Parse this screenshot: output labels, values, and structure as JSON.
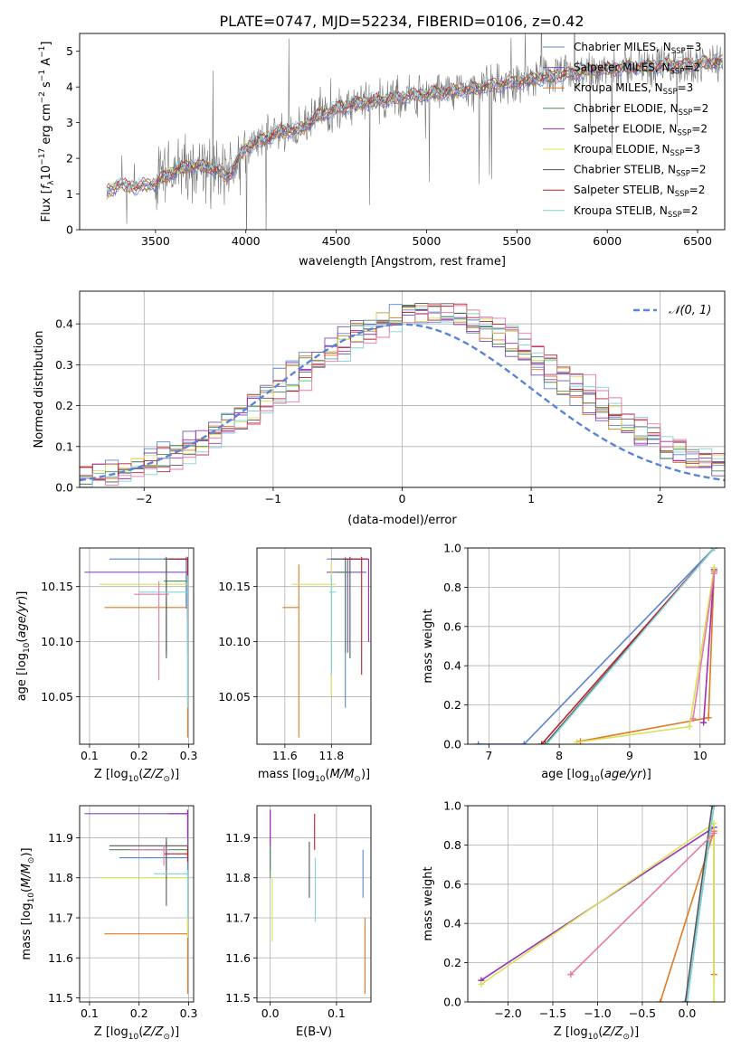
{
  "figure_title": "PLATE=0747, MJD=52234, FIBERID=0106, z=0.42",
  "colors": {
    "Chabrier MILES": "#5b84d6",
    "Salpeter MILES": "#7a4fb8",
    "Kroupa MILES": "#e07b23",
    "Chabrier ELODIE": "#4e8a5c",
    "Salpeter ELODIE": "#9b30b4",
    "Kroupa ELODIE": "#d8e35a",
    "Chabrier STELIB": "#555555",
    "Salpeter STELIB": "#b8202a",
    "Kroupa STELIB": "#7fd3d8",
    "pink": "#e879a8",
    "data": "#777777"
  },
  "chart_data": [
    {
      "id": "spectrum",
      "type": "line",
      "title": "PLATE=0747, MJD=52234, FIBERID=0106, z=0.42",
      "xlabel": "wavelength [Angstrom, rest frame]",
      "ylabel_parts": [
        "Flux [",
        "f",
        "λ",
        "10",
        "−17",
        " erg cm",
        "−2",
        " s",
        "−1",
        " A",
        "−1",
        "]"
      ],
      "xlim": [
        3080,
        6650
      ],
      "ylim": [
        0,
        5.5
      ],
      "xticks": [
        3500,
        4000,
        4500,
        5000,
        5500,
        6000,
        6500
      ],
      "yticks": [
        0,
        1,
        2,
        3,
        4,
        5
      ],
      "grid": false,
      "legend": "upper-right",
      "legend_entries": [
        {
          "prefix": "Chabrier MILES, N",
          "sub": "SSP",
          "suffix": "=3"
        },
        {
          "prefix": "Salpeter MILES, N",
          "sub": "SSP",
          "suffix": "=2"
        },
        {
          "prefix": "Kroupa MILES, N",
          "sub": "SSP",
          "suffix": "=3"
        },
        {
          "prefix": "Chabrier ELODIE, N",
          "sub": "SSP",
          "suffix": "=2"
        },
        {
          "prefix": "Salpeter ELODIE, N",
          "sub": "SSP",
          "suffix": "=2"
        },
        {
          "prefix": "Kroupa ELODIE, N",
          "sub": "SSP",
          "suffix": "=3"
        },
        {
          "prefix": "Chabrier STELIB, N",
          "sub": "SSP",
          "suffix": "=2"
        },
        {
          "prefix": "Salpeter STELIB, N",
          "sub": "SSP",
          "suffix": "=2"
        },
        {
          "prefix": "Kroupa STELIB, N",
          "sub": "SSP",
          "suffix": "=2"
        }
      ],
      "continuum": [
        [
          3230,
          1.05
        ],
        [
          3290,
          1.25
        ],
        [
          3400,
          1.2
        ],
        [
          3500,
          1.3
        ],
        [
          3600,
          1.65
        ],
        [
          3700,
          1.8
        ],
        [
          3800,
          1.75
        ],
        [
          3900,
          1.5
        ],
        [
          4000,
          2.3
        ],
        [
          4100,
          2.55
        ],
        [
          4200,
          2.75
        ],
        [
          4300,
          2.8
        ],
        [
          4400,
          3.2
        ],
        [
          4500,
          3.4
        ],
        [
          4700,
          3.6
        ],
        [
          4900,
          3.75
        ],
        [
          5100,
          3.85
        ],
        [
          5300,
          4.0
        ],
        [
          5500,
          4.15
        ],
        [
          5700,
          4.3
        ],
        [
          5900,
          4.45
        ],
        [
          6100,
          4.55
        ],
        [
          6300,
          4.6
        ],
        [
          6500,
          4.65
        ],
        [
          6600,
          4.7
        ]
      ]
    },
    {
      "id": "residuals",
      "type": "histogram",
      "xlabel": "(data-model)/error",
      "ylabel": "Normed distribution",
      "xlim": [
        -2.5,
        2.5
      ],
      "ylim": [
        0,
        0.48
      ],
      "xticks": [
        -2,
        -1,
        0,
        1,
        2
      ],
      "yticks": [
        0.0,
        0.1,
        0.2,
        0.3,
        0.4
      ],
      "grid": true,
      "legend": "upper-right",
      "legend_label": "𝒩(0, 1)",
      "bin_width": 0.1,
      "gaussian": {
        "mu": 0,
        "sigma": 1
      }
    },
    {
      "id": "age-vs-Z",
      "type": "errorbar",
      "xlabel": "Z [log",
      "xlabel_sub": "10",
      "xlabel_tail": "(Z/Z",
      "xlabel_sun": "⊙",
      "xlabel_end": ")]",
      "ylabel": "age  [log",
      "ylabel_sub": "10",
      "ylabel_tail": "(age/yr)]",
      "xlim": [
        0.08,
        0.31
      ],
      "ylim": [
        10.007,
        10.185
      ],
      "xticks": [
        0.1,
        0.2,
        0.3
      ],
      "yticks": [
        10.05,
        10.1,
        10.15
      ],
      "grid": true,
      "points": [
        {
          "m": "Chabrier MILES",
          "x": 0.295,
          "y": 10.175,
          "xe": [
            0.14,
            0.295
          ],
          "ye": [
            10.13,
            10.177
          ]
        },
        {
          "m": "Salpeter MILES",
          "x": 0.298,
          "y": 10.163,
          "xe": [
            0.09,
            0.298
          ],
          "ye": [
            10.09,
            10.175
          ]
        },
        {
          "m": "Kroupa MILES",
          "x": 0.298,
          "y": 10.131,
          "xe": [
            0.13,
            0.298
          ],
          "ye": [
            10.013,
            10.175
          ]
        },
        {
          "m": "Chabrier ELODIE",
          "x": 0.255,
          "y": 10.155,
          "xe": [
            0.25,
            0.298
          ],
          "ye": [
            10.09,
            10.175
          ]
        },
        {
          "m": "Salpeter ELODIE",
          "x": 0.298,
          "y": 10.175,
          "xe": [
            0.26,
            0.298
          ],
          "ye": [
            10.1,
            10.175
          ]
        },
        {
          "m": "Kroupa ELODIE",
          "x": 0.298,
          "y": 10.152,
          "xe": [
            0.12,
            0.298
          ],
          "ye": [
            10.14,
            10.172
          ]
        },
        {
          "m": "Chabrier STELIB",
          "x": 0.255,
          "y": 10.175,
          "xe": [
            0.25,
            0.298
          ],
          "ye": [
            10.085,
            10.177
          ]
        },
        {
          "m": "Salpeter STELIB",
          "x": 0.298,
          "y": 10.175,
          "xe": [
            0.26,
            0.298
          ],
          "ye": [
            10.12,
            10.177
          ]
        },
        {
          "m": "Kroupa STELIB",
          "x": 0.298,
          "y": 10.145,
          "xe": [
            0.2,
            0.298
          ],
          "ye": [
            10.04,
            10.16
          ]
        },
        {
          "m": "pink",
          "x": 0.24,
          "y": 10.143,
          "xe": [
            0.19,
            0.26
          ],
          "ye": [
            10.065,
            10.155
          ]
        }
      ]
    },
    {
      "id": "age-vs-mass",
      "type": "errorbar",
      "xlabel": "mass [log",
      "xlabel_sub": "10",
      "xlabel_tail": "(M/M",
      "xlabel_sun": "⊙",
      "xlabel_end": ")]",
      "xlim": [
        11.48,
        11.97
      ],
      "ylim": [
        10.007,
        10.185
      ],
      "xticks": [
        11.6,
        11.8
      ],
      "yticks": [
        10.05,
        10.1,
        10.15
      ],
      "grid": true,
      "points": [
        {
          "m": "Chabrier MILES",
          "x": 11.86,
          "y": 10.175,
          "xe": [
            11.78,
            11.93
          ],
          "ye": [
            10.04,
            10.177
          ]
        },
        {
          "m": "Salpeter MILES",
          "x": 11.87,
          "y": 10.163,
          "xe": [
            11.78,
            11.95
          ],
          "ye": [
            10.09,
            10.175
          ]
        },
        {
          "m": "Kroupa MILES",
          "x": 11.66,
          "y": 10.131,
          "xe": [
            11.59,
            11.66
          ],
          "ye": [
            10.013,
            10.17
          ]
        },
        {
          "m": "Chabrier ELODIE",
          "x": 11.86,
          "y": 10.163,
          "xe": [
            11.82,
            11.88
          ],
          "ye": [
            10.09,
            10.175
          ]
        },
        {
          "m": "Salpeter ELODIE",
          "x": 11.96,
          "y": 10.175,
          "xe": [
            11.86,
            11.96
          ],
          "ye": [
            10.1,
            10.175
          ]
        },
        {
          "m": "Kroupa ELODIE",
          "x": 11.8,
          "y": 10.152,
          "xe": [
            11.63,
            11.82
          ],
          "ye": [
            10.05,
            10.172
          ]
        },
        {
          "m": "Chabrier STELIB",
          "x": 11.88,
          "y": 10.175,
          "xe": [
            11.8,
            11.89
          ],
          "ye": [
            10.085,
            10.177
          ]
        },
        {
          "m": "Salpeter STELIB",
          "x": 11.93,
          "y": 10.175,
          "xe": [
            11.85,
            11.96
          ],
          "ye": [
            10.07,
            10.177
          ]
        },
        {
          "m": "Kroupa STELIB",
          "x": 11.8,
          "y": 10.145,
          "xe": [
            11.79,
            11.82
          ],
          "ye": [
            10.07,
            10.16
          ]
        }
      ]
    },
    {
      "id": "mass-weight-vs-age",
      "type": "line",
      "xlabel": "age  [log",
      "xlabel_sub": "10",
      "xlabel_tail": "(age/yr)]",
      "ylabel": "mass weight",
      "xlim": [
        6.7,
        10.35
      ],
      "ylim": [
        0,
        1.0
      ],
      "xticks": [
        7,
        8,
        9,
        10
      ],
      "yticks": [
        0.0,
        0.2,
        0.4,
        0.6,
        0.8,
        1.0
      ],
      "grid": true,
      "series": [
        {
          "m": "Chabrier MILES",
          "points": [
            [
              6.85,
              0.0
            ],
            [
              7.5,
              0.0
            ],
            [
              10.2,
              1.0
            ]
          ]
        },
        {
          "m": "Kroupa MILES",
          "points": [
            [
              8.3,
              0.015
            ],
            [
              10.12,
              0.135
            ],
            [
              10.2,
              0.88
            ]
          ]
        },
        {
          "m": "Chabrier ELODIE",
          "points": [
            [
              7.8,
              0.0
            ],
            [
              10.2,
              1.0
            ]
          ]
        },
        {
          "m": "Salpeter ELODIE",
          "points": [
            [
              10.05,
              0.11
            ],
            [
              10.2,
              0.89
            ]
          ]
        },
        {
          "m": "Kroupa ELODIE",
          "points": [
            [
              8.25,
              0.01
            ],
            [
              9.85,
              0.09
            ],
            [
              10.2,
              0.9
            ]
          ]
        },
        {
          "m": "Chabrier STELIB",
          "points": [
            [
              7.8,
              0.0
            ],
            [
              10.2,
              1.0
            ]
          ]
        },
        {
          "m": "Salpeter STELIB",
          "points": [
            [
              7.75,
              0.0
            ],
            [
              10.2,
              1.0
            ]
          ]
        },
        {
          "m": "Kroupa STELIB",
          "points": [
            [
              7.82,
              0.0
            ],
            [
              10.2,
              1.0
            ]
          ]
        },
        {
          "m": "pink",
          "points": [
            [
              9.9,
              0.13
            ],
            [
              10.2,
              0.87
            ]
          ]
        }
      ]
    },
    {
      "id": "mass-vs-Z",
      "type": "errorbar",
      "xlabel": "Z [log",
      "xlabel_sub": "10",
      "xlabel_tail": "(Z/Z",
      "xlabel_sun": "⊙",
      "xlabel_end": ")]",
      "ylabel": "mass [log",
      "ylabel_sub": "10",
      "ylabel_tail": "(M/M",
      "ylabel_sun": "⊙",
      "ylabel_end": ")]",
      "xlim": [
        0.08,
        0.31
      ],
      "ylim": [
        11.49,
        11.98
      ],
      "xticks": [
        0.1,
        0.2,
        0.3
      ],
      "yticks": [
        11.5,
        11.6,
        11.7,
        11.8,
        11.9
      ],
      "grid": true,
      "points": [
        {
          "m": "Chabrier MILES",
          "x": 0.298,
          "y": 11.85,
          "xe": [
            0.16,
            0.298
          ],
          "ye": [
            11.8,
            11.87
          ]
        },
        {
          "m": "Salpeter MILES",
          "x": 0.298,
          "y": 11.96,
          "xe": [
            0.09,
            0.298
          ],
          "ye": [
            11.88,
            11.97
          ]
        },
        {
          "m": "Kroupa MILES",
          "x": 0.298,
          "y": 11.66,
          "xe": [
            0.13,
            0.298
          ],
          "ye": [
            11.51,
            11.7
          ]
        },
        {
          "m": "Chabrier ELODIE",
          "x": 0.255,
          "y": 11.87,
          "xe": [
            0.14,
            0.298
          ],
          "ye": [
            11.82,
            11.89
          ]
        },
        {
          "m": "Salpeter ELODIE",
          "x": 0.298,
          "y": 11.96,
          "xe": [
            0.26,
            0.298
          ],
          "ye": [
            11.9,
            11.97
          ]
        },
        {
          "m": "Kroupa ELODIE",
          "x": 0.298,
          "y": 11.8,
          "xe": [
            0.12,
            0.298
          ],
          "ye": [
            11.65,
            11.8
          ]
        },
        {
          "m": "Chabrier STELIB",
          "x": 0.255,
          "y": 11.88,
          "xe": [
            0.14,
            0.298
          ],
          "ye": [
            11.73,
            11.9
          ]
        },
        {
          "m": "Salpeter STELIB",
          "x": 0.298,
          "y": 11.86,
          "xe": [
            0.25,
            0.298
          ],
          "ye": [
            11.84,
            11.88
          ]
        },
        {
          "m": "Kroupa STELIB",
          "x": 0.298,
          "y": 11.81,
          "xe": [
            0.23,
            0.298
          ],
          "ye": [
            11.7,
            11.82
          ]
        },
        {
          "m": "pink",
          "x": 0.25,
          "y": 11.87,
          "xe": [
            0.18,
            0.26
          ],
          "ye": [
            11.83,
            11.88
          ]
        }
      ]
    },
    {
      "id": "mass-vs-EBV",
      "type": "errorbar",
      "xlabel": "E(B-V)",
      "xlim": [
        -0.02,
        0.152
      ],
      "ylim": [
        11.49,
        11.98
      ],
      "xticks": [
        0.0,
        0.1
      ],
      "yticks": [
        11.5,
        11.6,
        11.7,
        11.8,
        11.9
      ],
      "grid": true,
      "points": [
        {
          "m": "Chabrier MILES",
          "x": 0.14,
          "y": 11.81,
          "ye": [
            11.75,
            11.87
          ]
        },
        {
          "m": "Salpeter MILES",
          "x": 0.0,
          "y": 11.9,
          "ye": [
            11.82,
            11.97
          ]
        },
        {
          "m": "Kroupa MILES",
          "x": 0.143,
          "y": 11.6,
          "ye": [
            11.51,
            11.7
          ]
        },
        {
          "m": "Chabrier ELODIE",
          "x": 0.0,
          "y": 11.85,
          "ye": [
            11.8,
            11.88
          ]
        },
        {
          "m": "Salpeter ELODIE",
          "x": 0.0,
          "y": 11.93,
          "ye": [
            11.88,
            11.97
          ]
        },
        {
          "m": "Kroupa ELODIE",
          "x": 0.003,
          "y": 11.72,
          "ye": [
            11.64,
            11.8
          ]
        },
        {
          "m": "Chabrier STELIB",
          "x": 0.059,
          "y": 11.82,
          "ye": [
            11.75,
            11.89
          ]
        },
        {
          "m": "Salpeter STELIB",
          "x": 0.067,
          "y": 11.92,
          "ye": [
            11.87,
            11.96
          ]
        },
        {
          "m": "Kroupa STELIB",
          "x": 0.068,
          "y": 11.77,
          "ye": [
            11.69,
            11.85
          ]
        }
      ]
    },
    {
      "id": "mass-weight-vs-Z",
      "type": "line",
      "xlabel": "Z [log",
      "xlabel_sub": "10",
      "xlabel_tail": "(Z/Z",
      "xlabel_sun": "⊙",
      "xlabel_end": ")]",
      "ylabel": "mass weight",
      "xlim": [
        -2.45,
        0.42
      ],
      "ylim": [
        0,
        1.0
      ],
      "xticks": [
        -2.0,
        -1.5,
        -1.0,
        -0.5,
        0.0
      ],
      "yticks": [
        0.0,
        0.2,
        0.4,
        0.6,
        0.8,
        1.0
      ],
      "grid": true,
      "series": [
        {
          "m": "Chabrier MILES",
          "points": [
            [
              0.0,
              0.0
            ],
            [
              0.3,
              1.0
            ]
          ]
        },
        {
          "m": "Kroupa MILES",
          "points": [
            [
              -0.3,
              0.0
            ],
            [
              0.3,
              0.87
            ],
            [
              0.3,
              0.14
            ]
          ]
        },
        {
          "m": "Salpeter ELODIE",
          "points": [
            [
              -2.3,
              0.11
            ],
            [
              0.3,
              0.89
            ]
          ]
        },
        {
          "m": "Kroupa ELODIE",
          "points": [
            [
              -2.3,
              0.09
            ],
            [
              0.3,
              0.91
            ],
            [
              0.3,
              0.0
            ]
          ]
        },
        {
          "m": "Kroupa STELIB",
          "points": [
            [
              0.0,
              0.0
            ],
            [
              0.3,
              1.0
            ]
          ]
        },
        {
          "m": "Chabrier STELIB",
          "points": [
            [
              -0.02,
              0.0
            ],
            [
              0.28,
              1.0
            ]
          ]
        },
        {
          "m": "pink",
          "points": [
            [
              -1.3,
              0.14
            ],
            [
              0.3,
              0.86
            ]
          ]
        }
      ]
    }
  ]
}
